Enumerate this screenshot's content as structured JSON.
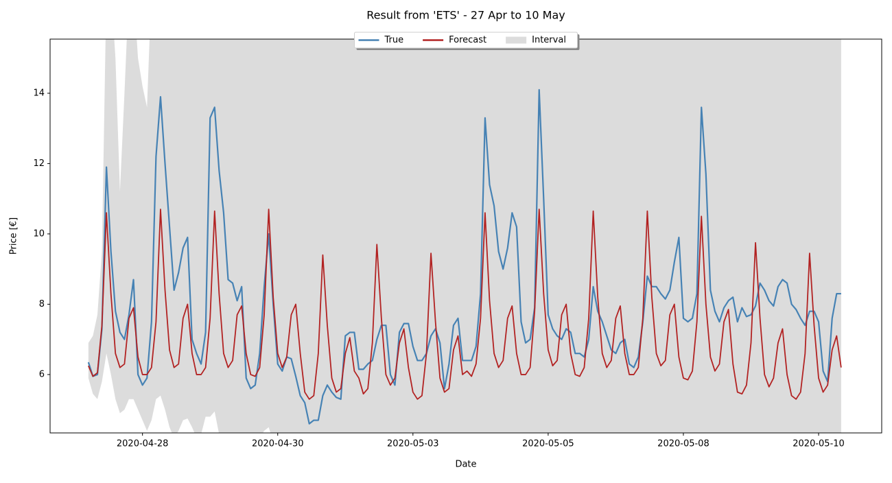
{
  "chart_data": {
    "type": "line",
    "title": "Result from 'ETS' - 27 Apr to 10 May",
    "xlabel": "Date",
    "ylabel": "Price [€]",
    "legend": "upper center",
    "xlim": [
      "2020-04-26T07",
      "2020-05-11T16"
    ],
    "xticks": [
      {
        "value": "2020-04-28T00",
        "label": "2020-04-28"
      },
      {
        "value": "2020-04-30T12",
        "label": "2020-04-30"
      },
      {
        "value": "2020-05-03T00",
        "label": "2020-05-03"
      },
      {
        "value": "2020-05-05T12",
        "label": "2020-05-05"
      },
      {
        "value": "2020-05-08T00",
        "label": "2020-05-08"
      },
      {
        "value": "2020-05-10T12",
        "label": "2020-05-10"
      }
    ],
    "ylim": [
      4.34,
      15.54
    ],
    "yticks": [
      6,
      8,
      10,
      12,
      14
    ],
    "x": [
      "2020-04-27T00",
      "2020-04-27T02",
      "2020-04-27T04",
      "2020-04-27T06",
      "2020-04-27T08",
      "2020-04-27T10",
      "2020-04-27T12",
      "2020-04-27T14",
      "2020-04-27T16",
      "2020-04-27T18",
      "2020-04-27T20",
      "2020-04-27T22",
      "2020-04-28T00",
      "2020-04-28T02",
      "2020-04-28T04",
      "2020-04-28T06",
      "2020-04-28T08",
      "2020-04-28T10",
      "2020-04-28T12",
      "2020-04-28T14",
      "2020-04-28T16",
      "2020-04-28T18",
      "2020-04-28T20",
      "2020-04-28T22",
      "2020-04-29T00",
      "2020-04-29T02",
      "2020-04-29T04",
      "2020-04-29T06",
      "2020-04-29T08",
      "2020-04-29T10",
      "2020-04-29T12",
      "2020-04-29T14",
      "2020-04-29T16",
      "2020-04-29T18",
      "2020-04-29T20",
      "2020-04-29T22",
      "2020-04-30T00",
      "2020-04-30T02",
      "2020-04-30T04",
      "2020-04-30T06",
      "2020-04-30T08",
      "2020-04-30T10",
      "2020-04-30T12",
      "2020-04-30T14",
      "2020-04-30T16",
      "2020-04-30T18",
      "2020-04-30T20",
      "2020-04-30T22",
      "2020-05-01T00",
      "2020-05-01T02",
      "2020-05-01T04",
      "2020-05-01T06",
      "2020-05-01T08",
      "2020-05-01T10",
      "2020-05-01T12",
      "2020-05-01T14",
      "2020-05-01T16",
      "2020-05-01T18",
      "2020-05-01T20",
      "2020-05-01T22",
      "2020-05-02T00",
      "2020-05-02T02",
      "2020-05-02T04",
      "2020-05-02T06",
      "2020-05-02T08",
      "2020-05-02T10",
      "2020-05-02T12",
      "2020-05-02T14",
      "2020-05-02T16",
      "2020-05-02T18",
      "2020-05-02T20",
      "2020-05-02T22",
      "2020-05-03T00",
      "2020-05-03T02",
      "2020-05-03T04",
      "2020-05-03T06",
      "2020-05-03T08",
      "2020-05-03T10",
      "2020-05-03T12",
      "2020-05-03T14",
      "2020-05-03T16",
      "2020-05-03T18",
      "2020-05-03T20",
      "2020-05-03T22",
      "2020-05-04T00",
      "2020-05-04T02",
      "2020-05-04T04",
      "2020-05-04T06",
      "2020-05-04T08",
      "2020-05-04T10",
      "2020-05-04T12",
      "2020-05-04T14",
      "2020-05-04T16",
      "2020-05-04T18",
      "2020-05-04T20",
      "2020-05-04T22",
      "2020-05-05T00",
      "2020-05-05T02",
      "2020-05-05T04",
      "2020-05-05T06",
      "2020-05-05T08",
      "2020-05-05T10",
      "2020-05-05T12",
      "2020-05-05T14",
      "2020-05-05T16",
      "2020-05-05T18",
      "2020-05-05T20",
      "2020-05-05T22",
      "2020-05-06T00",
      "2020-05-06T02",
      "2020-05-06T04",
      "2020-05-06T06",
      "2020-05-06T08",
      "2020-05-06T10",
      "2020-05-06T12",
      "2020-05-06T14",
      "2020-05-06T16",
      "2020-05-06T18",
      "2020-05-06T20",
      "2020-05-06T22",
      "2020-05-07T00",
      "2020-05-07T02",
      "2020-05-07T04",
      "2020-05-07T06",
      "2020-05-07T08",
      "2020-05-07T10",
      "2020-05-07T12",
      "2020-05-07T14",
      "2020-05-07T16",
      "2020-05-07T18",
      "2020-05-07T20",
      "2020-05-07T22",
      "2020-05-08T00",
      "2020-05-08T02",
      "2020-05-08T04",
      "2020-05-08T06",
      "2020-05-08T08",
      "2020-05-08T10",
      "2020-05-08T12",
      "2020-05-08T14",
      "2020-05-08T16",
      "2020-05-08T18",
      "2020-05-08T20",
      "2020-05-08T22",
      "2020-05-09T00",
      "2020-05-09T02",
      "2020-05-09T04",
      "2020-05-09T06",
      "2020-05-09T08",
      "2020-05-09T10",
      "2020-05-09T12",
      "2020-05-09T14",
      "2020-05-09T16",
      "2020-05-09T18",
      "2020-05-09T20",
      "2020-05-09T22",
      "2020-05-10T00",
      "2020-05-10T02",
      "2020-05-10T04",
      "2020-05-10T06",
      "2020-05-10T08",
      "2020-05-10T10",
      "2020-05-10T12",
      "2020-05-10T14",
      "2020-05-10T16",
      "2020-05-10T18",
      "2020-05-10T20",
      "2020-05-10T22"
    ],
    "interval": {
      "name": "Interval",
      "color": "#dcdcdc",
      "lower": [
        5.9,
        5.45,
        5.3,
        5.8,
        6.6,
        6.0,
        5.3,
        4.9,
        5.0,
        5.3,
        5.3,
        5.0,
        4.7,
        4.4,
        4.7,
        5.3,
        5.4,
        5.0,
        4.5,
        4.2,
        4.4,
        4.7,
        4.75,
        4.5,
        4.2,
        4.3,
        4.8,
        4.8,
        4.95,
        4.3,
        4.0,
        3.9,
        4.0,
        4.1,
        4.1,
        3.9,
        3.8,
        3.9,
        4.2,
        4.4,
        4.5,
        4.1,
        3.8,
        3.7,
        3.7,
        3.8,
        3.8,
        3.7,
        3.6,
        3.6,
        3.6,
        3.6,
        3.6,
        3.6,
        3.6,
        3.6,
        3.6,
        3.6,
        3.6,
        3.6,
        3.6,
        3.6,
        3.6,
        3.6,
        3.6,
        3.6,
        3.6,
        3.6,
        3.6,
        3.6,
        3.6,
        3.6,
        3.6,
        3.6,
        3.6,
        3.6,
        3.6,
        3.6,
        3.6,
        3.6,
        3.6,
        3.6,
        3.6,
        3.6,
        3.6,
        3.6,
        3.6,
        3.6,
        3.6,
        3.6,
        3.6,
        3.6,
        3.6,
        3.6,
        3.6,
        3.6,
        3.6,
        3.6,
        3.6,
        3.6,
        3.6,
        3.6,
        3.6,
        3.6,
        3.6,
        3.6,
        3.6,
        3.6,
        3.6,
        3.6,
        3.6,
        3.6,
        3.6,
        3.6,
        3.6,
        3.6,
        3.6,
        3.6,
        3.6,
        3.6,
        3.6,
        3.6,
        3.6,
        3.6,
        3.6,
        3.6,
        3.6,
        3.6,
        3.6,
        3.6,
        3.6,
        3.6,
        3.6,
        3.6,
        3.6,
        3.6,
        3.6,
        3.6,
        3.6,
        3.6,
        3.6,
        3.6,
        3.6,
        3.6,
        3.6,
        3.6,
        3.6,
        3.6,
        3.6,
        3.6,
        3.6,
        3.6,
        3.6,
        3.6,
        3.6,
        3.6,
        3.6,
        3.6,
        3.6,
        3.6,
        3.6,
        3.6,
        3.6,
        3.6,
        3.6,
        3.6,
        3.6,
        3.6
      ],
      "upper": [
        6.9,
        7.1,
        7.7,
        9.5,
        17,
        17,
        15,
        11.2,
        14,
        17,
        17,
        15,
        14.2,
        13.6,
        17,
        17,
        17,
        17,
        17,
        17,
        17,
        17,
        17,
        17,
        17,
        17,
        17,
        17,
        17,
        17,
        17,
        17,
        17,
        17,
        17,
        17,
        17,
        17,
        17,
        17,
        17,
        17,
        17,
        17,
        17,
        17,
        17,
        17,
        17,
        17,
        17,
        17,
        17,
        17,
        17,
        17,
        17,
        17,
        17,
        17,
        17,
        17,
        17,
        17,
        17,
        17,
        17,
        17,
        17,
        17,
        17,
        17,
        17,
        17,
        17,
        17,
        17,
        17,
        17,
        17,
        17,
        17,
        17,
        17,
        17,
        17,
        17,
        17,
        17,
        17,
        17,
        17,
        17,
        17,
        17,
        17,
        17,
        17,
        17,
        17,
        17,
        17,
        17,
        17,
        17,
        17,
        17,
        17,
        17,
        17,
        17,
        17,
        17,
        17,
        17,
        17,
        17,
        17,
        17,
        17,
        17,
        17,
        17,
        17,
        17,
        17,
        17,
        17,
        17,
        17,
        17,
        17,
        17,
        17,
        17,
        17,
        17,
        17,
        17,
        17,
        17,
        17,
        17,
        17,
        17,
        17,
        17,
        17,
        17,
        17,
        17,
        17,
        17,
        17,
        17,
        17,
        17,
        17,
        17,
        17,
        17,
        17,
        17,
        17,
        17,
        17,
        17,
        17
      ]
    },
    "series": [
      {
        "name": "True",
        "color": "#4682b4",
        "values": [
          6.35,
          5.95,
          6.0,
          7.3,
          11.9,
          9.5,
          7.8,
          7.2,
          7.0,
          7.7,
          8.7,
          6.0,
          5.7,
          5.9,
          7.5,
          12.2,
          13.9,
          12.0,
          10.2,
          8.4,
          8.9,
          9.6,
          9.9,
          7.0,
          6.6,
          6.3,
          7.2,
          13.3,
          13.6,
          11.8,
          10.6,
          8.7,
          8.6,
          8.1,
          8.5,
          5.9,
          5.6,
          5.7,
          6.6,
          8.5,
          10.0,
          8.0,
          6.3,
          6.1,
          6.5,
          6.45,
          5.95,
          5.4,
          5.2,
          4.6,
          4.7,
          4.7,
          5.4,
          5.7,
          5.5,
          5.35,
          5.3,
          7.1,
          7.2,
          7.2,
          6.15,
          6.15,
          6.3,
          6.4,
          7.0,
          7.4,
          7.4,
          6.0,
          5.7,
          7.2,
          7.45,
          7.45,
          6.8,
          6.4,
          6.4,
          6.6,
          7.1,
          7.3,
          6.9,
          5.6,
          6.3,
          7.4,
          7.6,
          6.4,
          6.4,
          6.4,
          6.8,
          8.3,
          13.3,
          11.4,
          10.8,
          9.5,
          9.0,
          9.6,
          10.6,
          10.2,
          7.5,
          6.9,
          7.0,
          7.9,
          14.1,
          11.0,
          7.7,
          7.3,
          7.1,
          7.0,
          7.3,
          7.2,
          6.6,
          6.6,
          6.5,
          7.0,
          8.5,
          7.8,
          7.5,
          7.1,
          6.7,
          6.6,
          6.9,
          7.0,
          6.3,
          6.2,
          6.5,
          7.5,
          8.8,
          8.5,
          8.5,
          8.3,
          8.15,
          8.4,
          9.2,
          9.9,
          7.6,
          7.5,
          7.6,
          8.3,
          13.6,
          11.7,
          8.4,
          7.8,
          7.5,
          7.9,
          8.1,
          8.2,
          7.5,
          7.9,
          7.65,
          7.7,
          7.95,
          8.6,
          8.4,
          8.1,
          7.95,
          8.5,
          8.7,
          8.6,
          8.0,
          7.85,
          7.6,
          7.4,
          7.8,
          7.8,
          7.5,
          6.1,
          5.8,
          7.6,
          8.3,
          8.3
        ]
      },
      {
        "name": "Forecast",
        "color": "#b22222",
        "values": [
          6.25,
          5.95,
          6.05,
          7.4,
          10.6,
          8.3,
          6.6,
          6.2,
          6.3,
          7.6,
          7.9,
          6.5,
          6.0,
          6.0,
          6.2,
          7.5,
          10.7,
          8.4,
          6.7,
          6.2,
          6.3,
          7.6,
          8.0,
          6.6,
          6.0,
          6.0,
          6.2,
          7.6,
          10.65,
          8.3,
          6.6,
          6.2,
          6.4,
          7.7,
          7.95,
          6.6,
          6.0,
          5.95,
          6.2,
          7.7,
          10.7,
          8.2,
          6.6,
          6.2,
          6.5,
          7.7,
          8.0,
          6.6,
          5.5,
          5.3,
          5.4,
          6.6,
          9.4,
          7.4,
          5.9,
          5.5,
          5.6,
          6.6,
          7.05,
          6.1,
          5.9,
          5.45,
          5.6,
          6.9,
          9.7,
          7.6,
          6.0,
          5.7,
          5.9,
          6.9,
          7.3,
          6.2,
          5.5,
          5.3,
          5.4,
          6.6,
          9.45,
          7.5,
          5.9,
          5.5,
          5.6,
          6.7,
          7.1,
          6.0,
          6.1,
          5.95,
          6.3,
          7.6,
          10.6,
          8.1,
          6.6,
          6.2,
          6.4,
          7.6,
          7.95,
          6.6,
          6.0,
          6.0,
          6.2,
          7.8,
          10.7,
          8.3,
          6.7,
          6.25,
          6.4,
          7.7,
          8.0,
          6.6,
          6.0,
          5.95,
          6.2,
          7.6,
          10.65,
          8.2,
          6.6,
          6.2,
          6.4,
          7.6,
          7.95,
          6.6,
          6.0,
          6.0,
          6.2,
          7.6,
          10.65,
          8.2,
          6.6,
          6.25,
          6.4,
          7.7,
          8.0,
          6.5,
          5.9,
          5.85,
          6.1,
          7.5,
          10.5,
          8.0,
          6.5,
          6.1,
          6.3,
          7.5,
          7.85,
          6.3,
          5.5,
          5.45,
          5.7,
          6.9,
          9.75,
          7.6,
          6.0,
          5.65,
          5.9,
          6.9,
          7.3,
          6.0,
          5.4,
          5.3,
          5.5,
          6.6,
          9.45,
          7.4,
          5.9,
          5.5,
          5.7,
          6.7,
          7.1,
          6.2
        ]
      }
    ]
  }
}
